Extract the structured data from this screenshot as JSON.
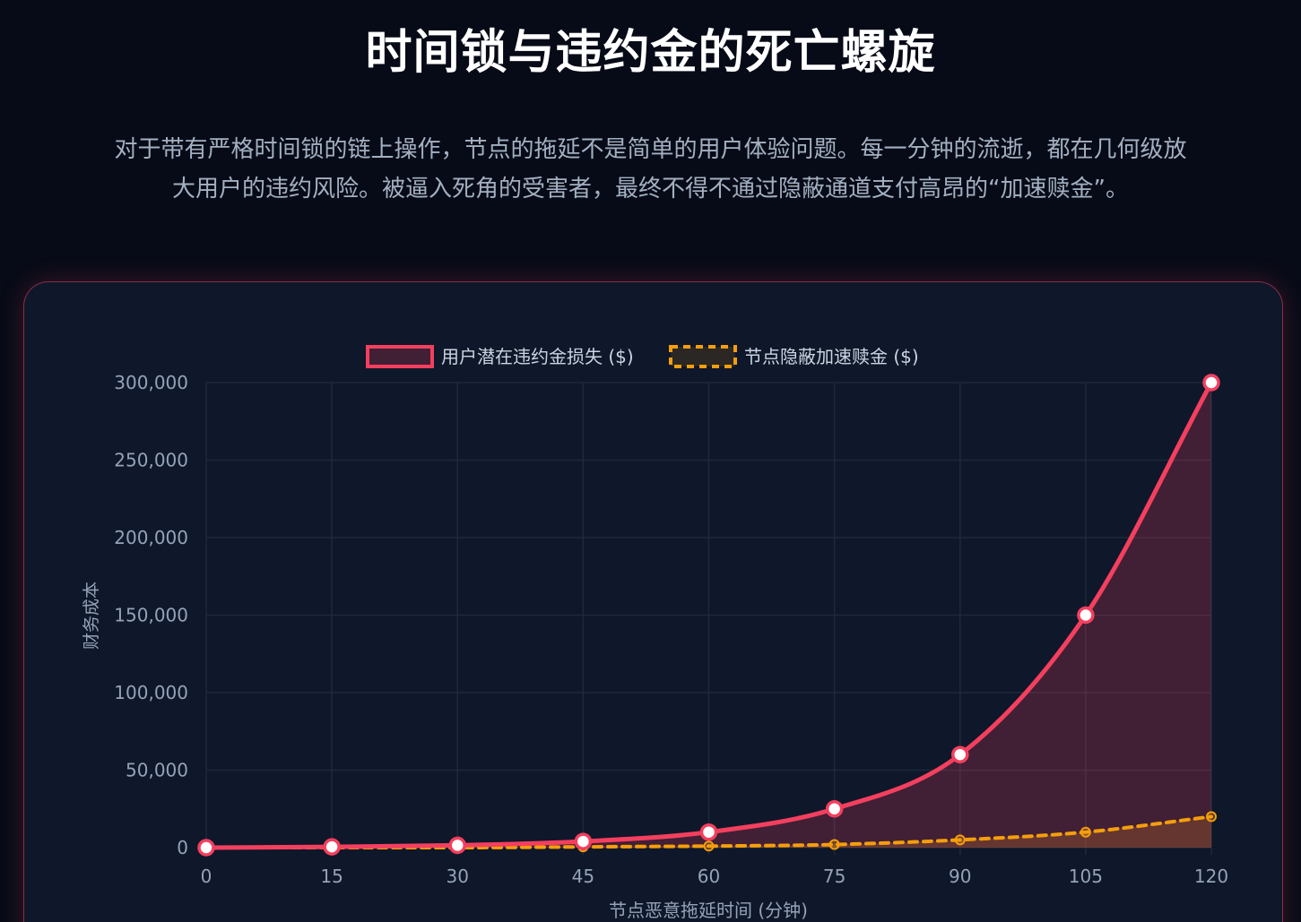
{
  "header": {
    "title": "时间锁与违约金的死亡螺旋",
    "intro_line1": "对于带有严格时间锁的链上操作，节点的拖延不是简单的用户体验问题。每一分钟的流逝，都在几何级放",
    "intro_line2": "大用户的违约风险。被逼入死角的受害者，最终不得不通过隐蔽通道支付高昂的“加速赎金”。"
  },
  "chart_data": {
    "type": "line",
    "title": "",
    "xlabel": "节点恶意拖延时间 (分钟)",
    "ylabel": "财务成本",
    "x": [
      0,
      15,
      30,
      45,
      60,
      75,
      90,
      105,
      120
    ],
    "x_tick_labels": [
      "0",
      "15",
      "30",
      "45",
      "60",
      "75",
      "90",
      "105",
      "120"
    ],
    "y_tick_labels": [
      "300,000",
      "250,000",
      "200,000",
      "150,000",
      "100,000",
      "50,000",
      "0"
    ],
    "ylim": [
      0,
      300000
    ],
    "grid": true,
    "legend_position": "top-center",
    "series": [
      {
        "name": "用户潜在违约金损失 ($)",
        "values": [
          0,
          500,
          1500,
          4000,
          10000,
          25000,
          60000,
          150000,
          300000
        ],
        "color": "#f43f5e",
        "fill": true,
        "style": "solid"
      },
      {
        "name": "节点隐蔽加速赎金 ($)",
        "values": [
          0,
          0,
          0,
          500,
          1000,
          2000,
          5000,
          10000,
          20000
        ],
        "color": "#f59e0b",
        "fill": true,
        "style": "dashed"
      }
    ]
  }
}
